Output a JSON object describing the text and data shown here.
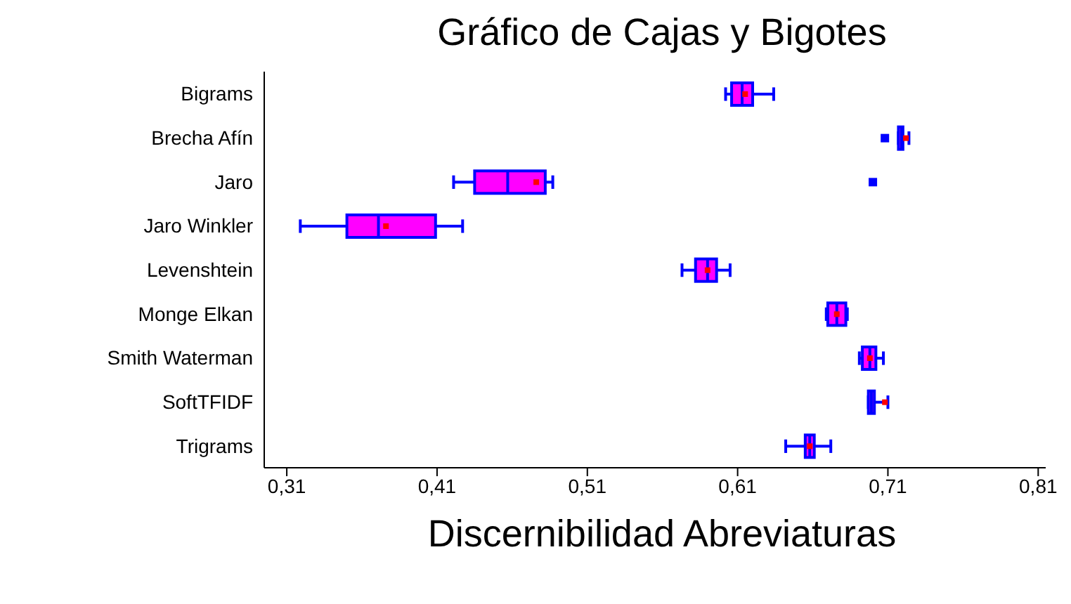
{
  "chart_data": {
    "type": "box",
    "title": "Gráfico de Cajas y Bigotes",
    "xlabel": "Discernibilidad Abreviaturas",
    "orientation": "horizontal",
    "categories": [
      "Bigrams",
      "Brecha Afín",
      "Jaro",
      "Jaro Winkler",
      "Levenshtein",
      "Monge Elkan",
      "Smith Waterman",
      "SoftTFIDF",
      "Trigrams"
    ],
    "xlim": [
      0.295,
      0.815
    ],
    "xticks": [
      {
        "value": 0.31,
        "label": "0,31"
      },
      {
        "value": 0.41,
        "label": "0,41"
      },
      {
        "value": 0.51,
        "label": "0,51"
      },
      {
        "value": 0.61,
        "label": "0,61"
      },
      {
        "value": 0.71,
        "label": "0,71"
      },
      {
        "value": 0.81,
        "label": "0,81"
      }
    ],
    "series": [
      {
        "color": "#ff00ff",
        "boxes": [
          {
            "low": 0.602,
            "q1": 0.606,
            "median": 0.613,
            "q3": 0.62,
            "high": 0.634,
            "mean": 0.615
          },
          {
            "low": 0.717,
            "q1": 0.717,
            "median": 0.719,
            "q3": 0.72,
            "high": 0.724,
            "mean": 0.722,
            "outliers": [
              0.708
            ]
          },
          {
            "low": 0.421,
            "q1": 0.435,
            "median": 0.457,
            "q3": 0.482,
            "high": 0.487,
            "mean": 0.476,
            "outliers": [
              0.7
            ]
          },
          {
            "low": 0.319,
            "q1": 0.35,
            "median": 0.371,
            "q3": 0.409,
            "high": 0.427,
            "mean": 0.376
          },
          {
            "low": 0.573,
            "q1": 0.582,
            "median": 0.59,
            "q3": 0.596,
            "high": 0.605,
            "mean": 0.59
          },
          {
            "low": 0.669,
            "q1": 0.67,
            "median": 0.676,
            "q3": 0.682,
            "high": 0.683,
            "mean": 0.676
          },
          {
            "low": 0.691,
            "q1": 0.693,
            "median": 0.698,
            "q3": 0.702,
            "high": 0.707,
            "mean": 0.698
          },
          {
            "low": 0.697,
            "q1": 0.697,
            "median": 0.699,
            "q3": 0.701,
            "high": 0.71,
            "mean": 0.708
          },
          {
            "low": 0.642,
            "q1": 0.655,
            "median": 0.658,
            "q3": 0.661,
            "high": 0.672,
            "mean": 0.658
          }
        ]
      }
    ]
  }
}
